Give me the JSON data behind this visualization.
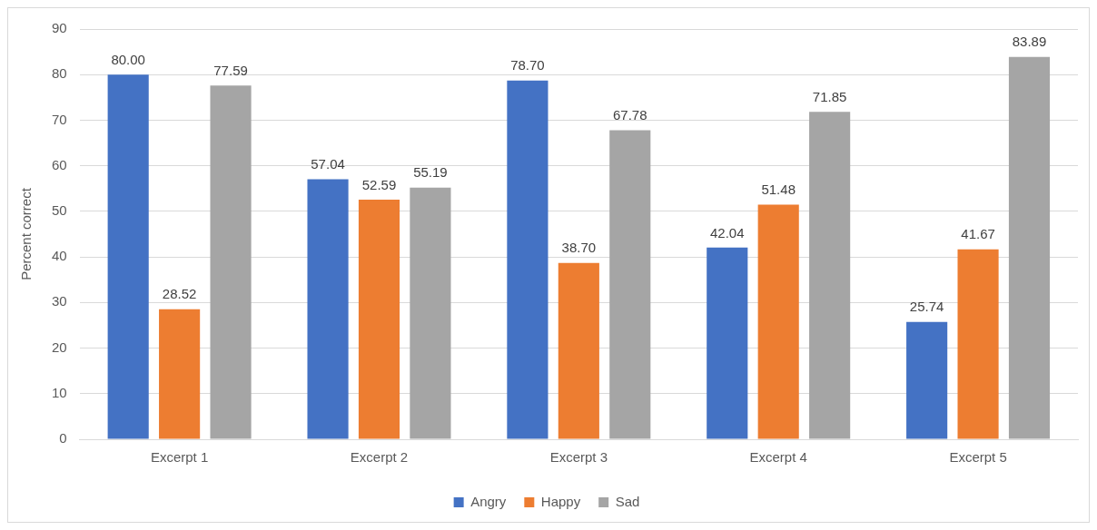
{
  "chart_data": {
    "type": "bar",
    "ylabel": "Percent correct",
    "categories": [
      "Excerpt 1",
      "Excerpt 2",
      "Excerpt 3",
      "Excerpt 4",
      "Excerpt 5"
    ],
    "series": [
      {
        "name": "Angry",
        "color": "#4472c4",
        "values": [
          80.0,
          57.04,
          78.7,
          42.04,
          25.74
        ],
        "value_labels": [
          "80.00",
          "57.04",
          "78.70",
          "42.04",
          "25.74"
        ]
      },
      {
        "name": "Happy",
        "color": "#ed7d31",
        "values": [
          28.52,
          52.59,
          38.7,
          51.48,
          41.67
        ],
        "value_labels": [
          "28.52",
          "52.59",
          "38.70",
          "51.48",
          "41.67"
        ]
      },
      {
        "name": "Sad",
        "color": "#a5a5a5",
        "values": [
          77.59,
          55.19,
          67.78,
          71.85,
          83.89
        ],
        "value_labels": [
          "77.59",
          "55.19",
          "67.78",
          "71.85",
          "83.89"
        ]
      }
    ],
    "ylim": [
      0,
      90
    ],
    "yticks": [
      0,
      10,
      20,
      30,
      40,
      50,
      60,
      70,
      80,
      90
    ],
    "grid": "y",
    "legend": "bottom"
  }
}
